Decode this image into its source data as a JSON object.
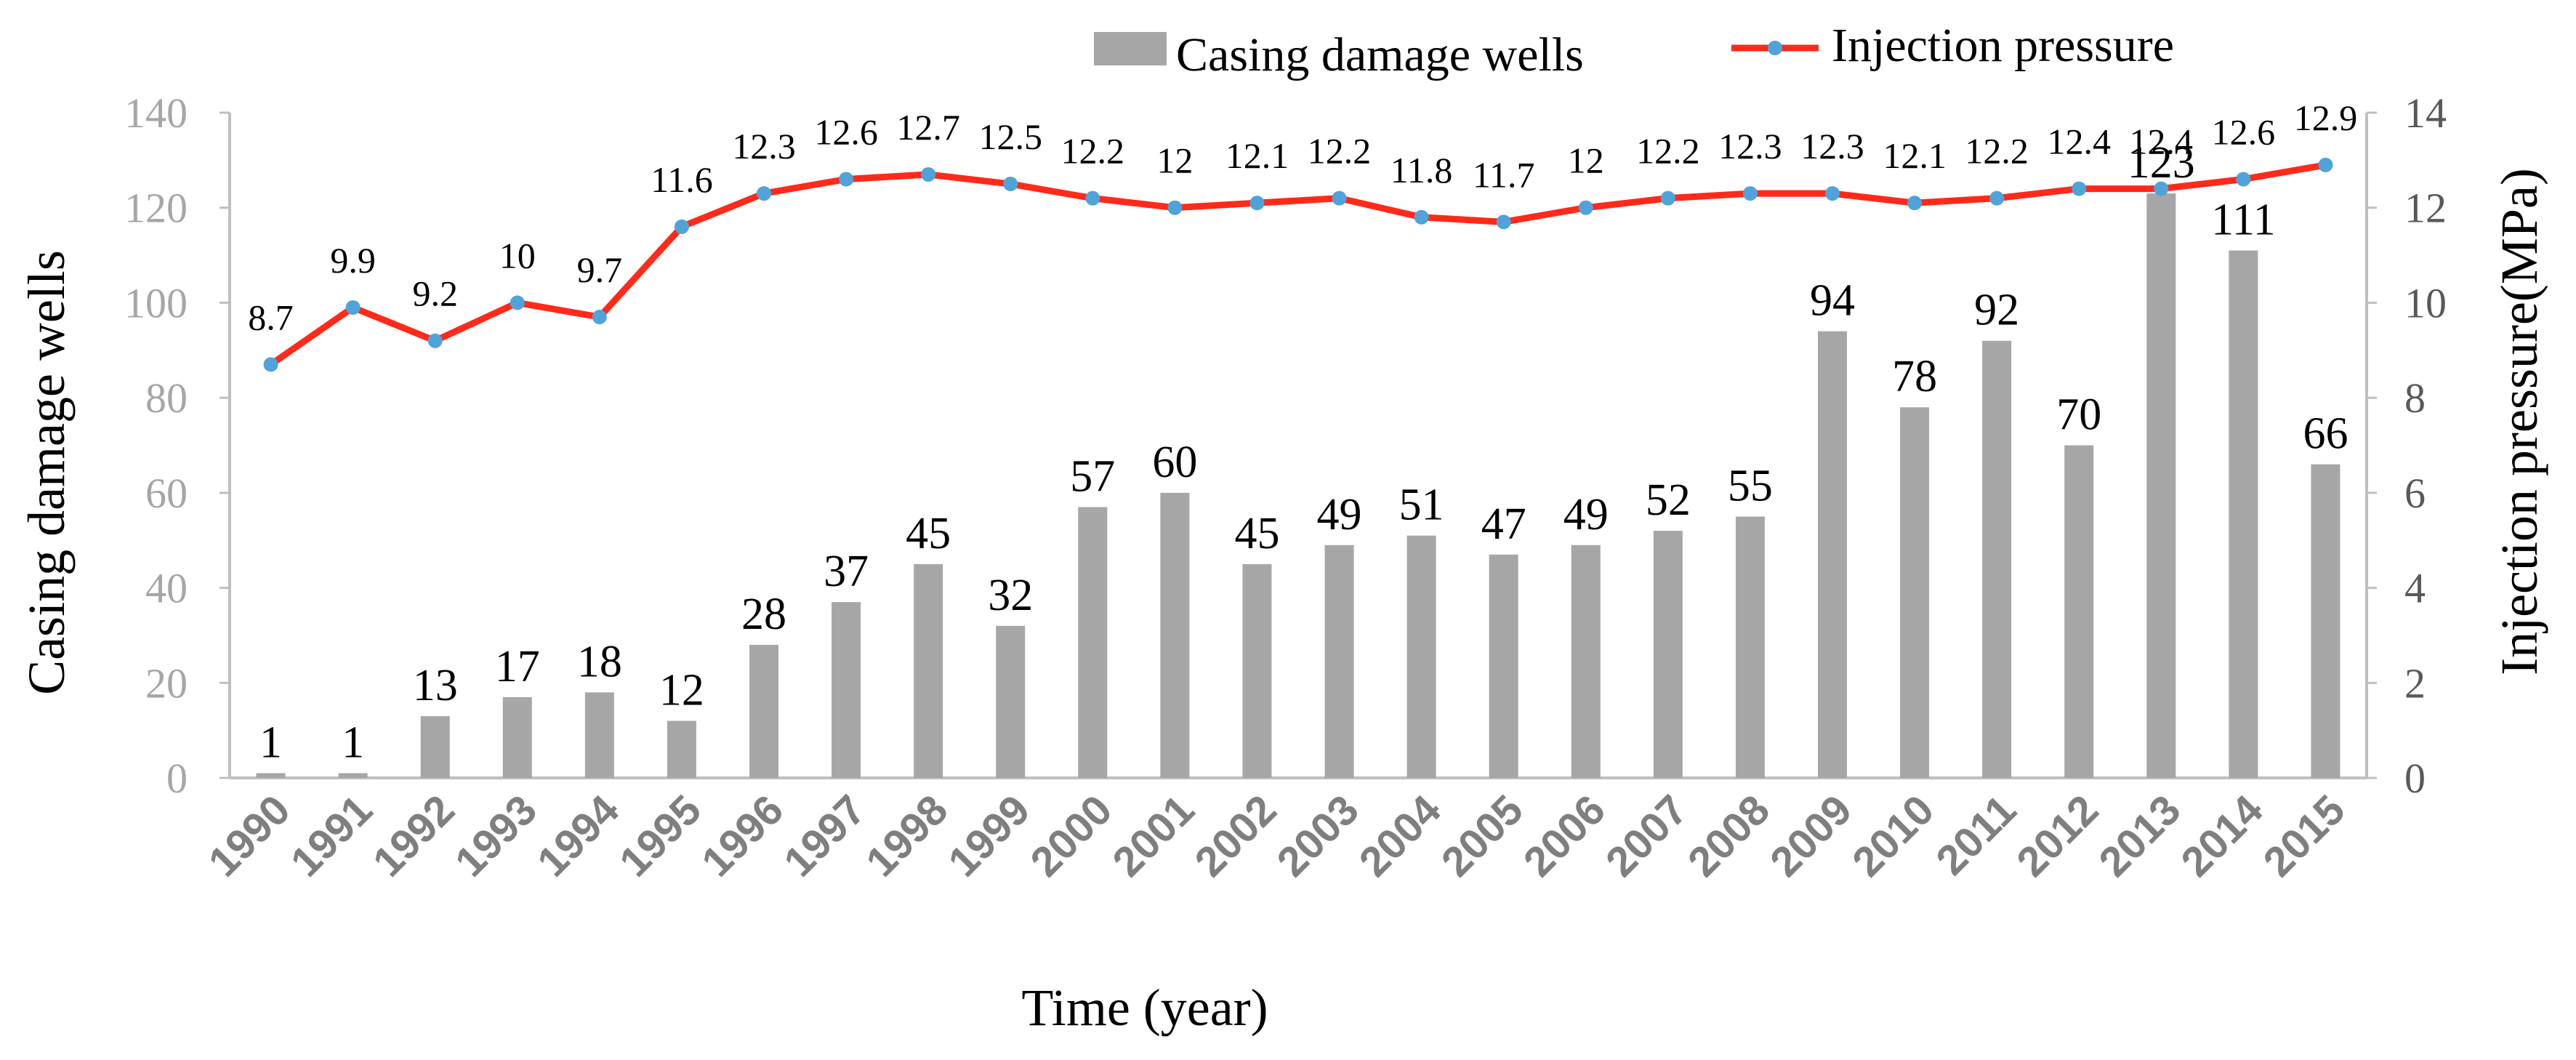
{
  "chart_data": {
    "type": "bar+line",
    "categories": [
      "1990",
      "1991",
      "1992",
      "1993",
      "1994",
      "1995",
      "1996",
      "1997",
      "1998",
      "1999",
      "2000",
      "2001",
      "2002",
      "2003",
      "2004",
      "2005",
      "2006",
      "2007",
      "2008",
      "2009",
      "2010",
      "2011",
      "2012",
      "2013",
      "2014",
      "2015"
    ],
    "series": [
      {
        "name": "Casing damage wells",
        "type": "bar",
        "axis": "left",
        "values": [
          1,
          1,
          13,
          17,
          18,
          12,
          28,
          37,
          45,
          32,
          57,
          60,
          45,
          49,
          51,
          47,
          49,
          52,
          55,
          94,
          78,
          92,
          70,
          123,
          111,
          66
        ]
      },
      {
        "name": "Injection pressure",
        "type": "line",
        "axis": "right",
        "values": [
          8.7,
          9.9,
          9.2,
          10,
          9.7,
          11.6,
          12.3,
          12.6,
          12.7,
          12.5,
          12.2,
          12,
          12.1,
          12.2,
          11.8,
          11.7,
          12,
          12.2,
          12.3,
          12.3,
          12.1,
          12.2,
          12.4,
          12.4,
          12.6,
          12.9
        ]
      }
    ],
    "xlabel": "Time (year)",
    "ylabel_left": "Casing damage wells",
    "ylabel_right": "Injection pressure(MPa)",
    "ylim_left": [
      0,
      140
    ],
    "ylim_right": [
      0,
      14
    ],
    "yticks_left": [
      0,
      20,
      40,
      60,
      80,
      100,
      120,
      140
    ],
    "yticks_right": [
      0,
      2,
      4,
      6,
      8,
      10,
      12,
      14
    ],
    "legend_position": "top-right",
    "colors": {
      "bar": "#a6a6a6",
      "line": "#ff2a1a",
      "marker": "#4fa3d9",
      "axis": "#bfbfbf",
      "left_tick_text": "#a6a6a6",
      "right_tick_text": "#595959",
      "year_text": "#7f7f7f",
      "text": "#000000"
    }
  }
}
